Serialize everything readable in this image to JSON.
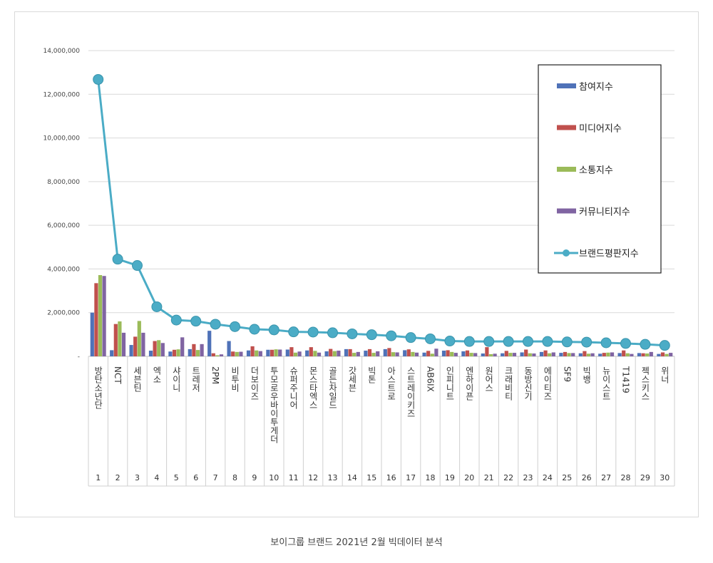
{
  "caption": "보이그룹 브랜드 2021년 2월 빅데이터 분석",
  "chart_data": {
    "type": "bar",
    "y_ticks": [
      "-",
      "2,000,000",
      "4,000,000",
      "6,000,000",
      "8,000,000",
      "10,000,000",
      "12,000,000",
      "14,000,000"
    ],
    "ylim": [
      0,
      14000000
    ],
    "grid": true,
    "legend_position": "top-right",
    "categories": [
      "방탄소년단",
      "NCT",
      "세븐틴",
      "엑소",
      "샤이니",
      "트레저",
      "2PM",
      "비투비",
      "더보이즈",
      "투모로우바이투게더",
      "슈퍼주니어",
      "몬스타엑스",
      "골든차일드",
      "갓세븐",
      "빅톤",
      "아스트로",
      "스트레이키즈",
      "AB6IX",
      "인피니트",
      "엔하이픈",
      "원어스",
      "크래비티",
      "동방신기",
      "에이티즈",
      "SF9",
      "빅뱅",
      "뉴이스트",
      "T1419",
      "젝스키스",
      "위너"
    ],
    "ranks": [
      "1",
      "2",
      "3",
      "4",
      "5",
      "6",
      "7",
      "8",
      "9",
      "10",
      "11",
      "12",
      "13",
      "14",
      "15",
      "16",
      "17",
      "18",
      "19",
      "20",
      "21",
      "22",
      "23",
      "24",
      "25",
      "26",
      "27",
      "28",
      "29",
      "30"
    ],
    "series": [
      {
        "name": "참여지수",
        "type": "bar",
        "color": "#4f72b8",
        "values": [
          2000000,
          280000,
          520000,
          260000,
          220000,
          330000,
          1170000,
          700000,
          270000,
          300000,
          310000,
          270000,
          230000,
          330000,
          260000,
          330000,
          280000,
          170000,
          260000,
          230000,
          130000,
          140000,
          180000,
          200000,
          160000,
          140000,
          120000,
          150000,
          150000,
          110000
        ]
      },
      {
        "name": "미디어지수",
        "type": "bar",
        "color": "#c0504d",
        "values": [
          3350000,
          1480000,
          900000,
          700000,
          300000,
          560000,
          140000,
          220000,
          460000,
          300000,
          420000,
          420000,
          340000,
          330000,
          330000,
          380000,
          320000,
          250000,
          280000,
          270000,
          420000,
          250000,
          310000,
          270000,
          200000,
          240000,
          160000,
          270000,
          140000,
          180000
        ]
      },
      {
        "name": "소통지수",
        "type": "bar",
        "color": "#9bbb59",
        "values": [
          3720000,
          1600000,
          1620000,
          740000,
          320000,
          290000,
          50000,
          200000,
          270000,
          320000,
          170000,
          250000,
          240000,
          160000,
          160000,
          190000,
          200000,
          120000,
          200000,
          160000,
          100000,
          160000,
          140000,
          140000,
          150000,
          120000,
          170000,
          140000,
          130000,
          110000
        ]
      },
      {
        "name": "커뮤니티지수",
        "type": "bar",
        "color": "#8064a2",
        "values": [
          3680000,
          1080000,
          1080000,
          610000,
          870000,
          560000,
          90000,
          210000,
          240000,
          310000,
          220000,
          170000,
          260000,
          200000,
          230000,
          180000,
          170000,
          350000,
          160000,
          150000,
          120000,
          160000,
          130000,
          180000,
          150000,
          140000,
          180000,
          110000,
          200000,
          160000
        ]
      },
      {
        "name": "브랜드평판지수",
        "type": "line",
        "color": "#4bacc6",
        "values": [
          12680000,
          4450000,
          4160000,
          2270000,
          1660000,
          1610000,
          1470000,
          1360000,
          1240000,
          1210000,
          1120000,
          1110000,
          1080000,
          1030000,
          990000,
          940000,
          860000,
          800000,
          700000,
          680000,
          680000,
          680000,
          680000,
          680000,
          660000,
          650000,
          620000,
          590000,
          550000,
          500000
        ]
      }
    ]
  }
}
